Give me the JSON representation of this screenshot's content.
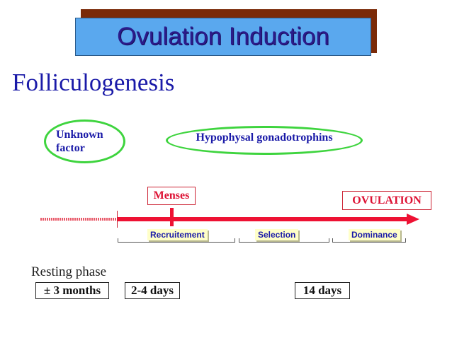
{
  "title": "Ovulation Induction",
  "subtitle": "Folliculogenesis",
  "unknown_factor": "Unknown\nfactor",
  "gonadotrophins": "Hypophysal gonadotrophins",
  "menses": "Menses",
  "ovulation": "OVULATION",
  "phases": [
    "Recruitement",
    "Selection",
    "Dominance"
  ],
  "resting_phase": "Resting phase",
  "durations": [
    "± 3 months",
    "2-4 days",
    "14 days"
  ],
  "colors": {
    "banner": "#5aa8ee",
    "banner_shadow": "#7a2a08",
    "title_text": "#2b1a8a",
    "ellipse": "#3ed43e",
    "timeline": "#ee1133",
    "phase_fill": "#ffffc8"
  }
}
